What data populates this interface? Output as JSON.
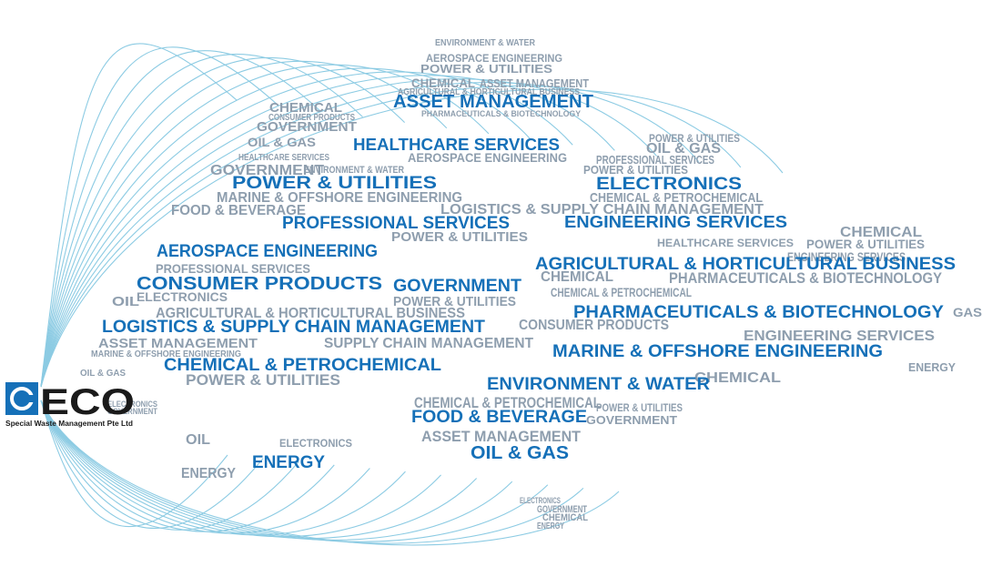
{
  "logo": {
    "title": "ECO",
    "subtitle": "Special Waste Management Pte Ltd"
  },
  "featured_words": [
    "ASSET MANAGEMENT",
    "HEALTHCARE SERVICES",
    "POWER & UTILITIES",
    "PROFESSIONAL SERVICES",
    "ENGINEERING SERVICES",
    "ELECTRONICS",
    "AEROSPACE ENGINEERING",
    "AGRICULTURAL & HORTICULTURAL BUSINESS",
    "CONSUMER PRODUCTS",
    "GOVERNMENT",
    "PHARMACEUTICALS & BIOTECHNOLOGY",
    "LOGISTICS & SUPPLY CHAIN MANAGEMENT",
    "MARINE & OFFSHORE ENGINEERING",
    "CHEMICAL & PETROCHEMICAL",
    "ENVIRONMENT & WATER",
    "FOOD & BEVERAGE",
    "OIL & GAS",
    "ENERGY"
  ],
  "background_words": [
    "ENVIRONMENT & WATER",
    "AEROSPACE ENGINEERING",
    "POWER & UTILITIES",
    "CHEMICAL",
    "ASSET MANAGEMENT",
    "AGRICULTURAL & HORTICULTURAL BUSINESS",
    "PHARMACEUTICALS & BIOTECHNOLOGY",
    "CHEMICAL",
    "CONSUMER PRODUCTS",
    "GOVERNMENT",
    "OIL & GAS",
    "HEALTHCARE SERVICES",
    "GOVERNMENT",
    "MARINE & OFFSHORE ENGINEERING",
    "FOOD & BEVERAGE",
    "ENVIRONMENT & WATER",
    "AEROSPACE ENGINEERING",
    "LOGISTICS & SUPPLY CHAIN MANAGEMENT",
    "POWER & UTILITIES",
    "PROFESSIONAL SERVICES",
    "ELECTRONICS",
    "AGRICULTURAL & HORTICULTURAL BUSINESS",
    "ASSET MANAGEMENT",
    "SUPPLY CHAIN MANAGEMENT",
    "POWER & UTILITIES",
    "POWER & UTILITIES",
    "CONSUMER PRODUCTS",
    "CHEMICAL & PETROCHEMICAL",
    "CHEMICAL",
    "PHARMACEUTICALS & BIOTECHNOLOGY",
    "ENGINEERING SERVICES",
    "CHEMICAL",
    "CHEMICAL",
    "POWER & UTILITIES",
    "ENGINEERING SERVICES",
    "GAS",
    "ENERGY",
    "POWER & UTILITIES",
    "OIL & GAS",
    "PROFESSIONAL SERVICES",
    "POWER & UTILITIES",
    "CHEMICAL & PETROCHEMICAL",
    "HEALTHCARE SERVICES",
    "CHEMICAL & PETROCHEMICAL",
    "ASSET MANAGEMENT",
    "GOVERNMENT",
    "POWER & UTILITIES",
    "ELECTRONICS",
    "ENERGY",
    "OIL",
    "GOVERNMENT",
    "ELECTRONICS",
    "OIL",
    "OIL & GAS",
    "MARINE & OFFSHORE ENGINEERING",
    "ENERGY",
    "GOVERNMENT",
    "CHEMICAL",
    "ELECTRONICS"
  ]
}
